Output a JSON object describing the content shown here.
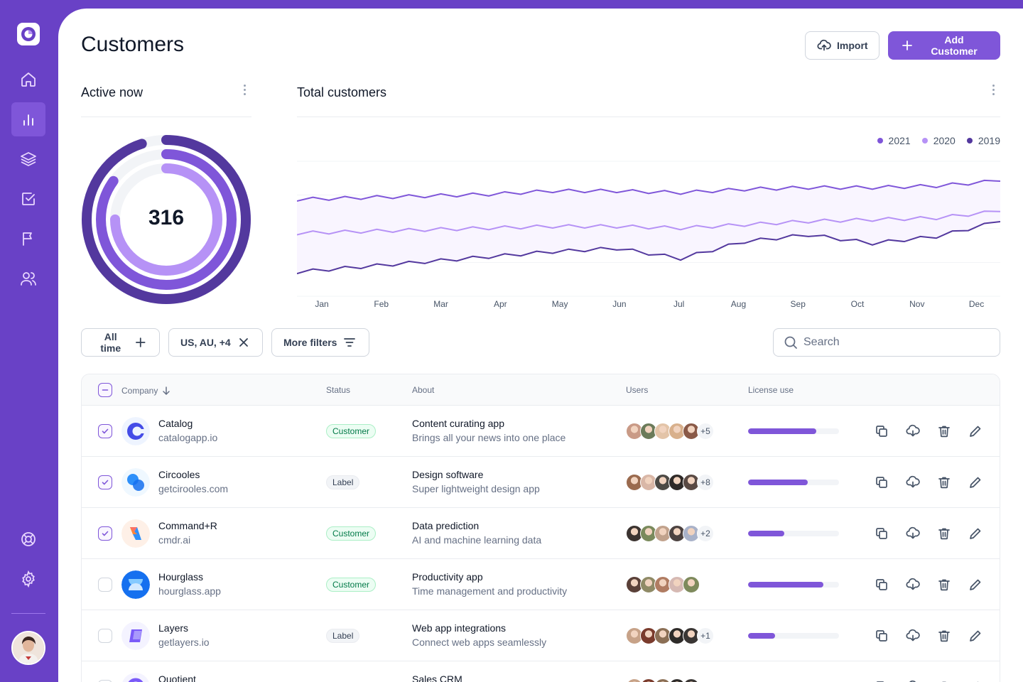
{
  "sidebar": {
    "items": [
      {
        "name": "home-icon"
      },
      {
        "name": "bar-chart-icon",
        "active": true
      },
      {
        "name": "layers-icon"
      },
      {
        "name": "check-square-icon"
      },
      {
        "name": "flag-icon"
      },
      {
        "name": "users-icon"
      }
    ],
    "bottom_items": [
      {
        "name": "life-buoy-icon"
      },
      {
        "name": "settings-icon"
      }
    ]
  },
  "header": {
    "title": "Customers",
    "import_label": "Import",
    "add_label": "Add Customer"
  },
  "active_now": {
    "title": "Active now",
    "value": "316",
    "rings": [
      0.95,
      0.85,
      0.75
    ]
  },
  "total_customers": {
    "title": "Total customers",
    "legend": [
      {
        "label": "2021",
        "color": "#7F56D9"
      },
      {
        "label": "2020",
        "color": "#B692F6"
      },
      {
        "label": "2019",
        "color": "#53389E"
      }
    ]
  },
  "chart_data": {
    "type": "line",
    "title": "Total customers",
    "categories": [
      "Jan",
      "Feb",
      "Mar",
      "Apr",
      "May",
      "Jun",
      "Jul",
      "Aug",
      "Sep",
      "Oct",
      "Nov",
      "Dec"
    ],
    "series": [
      {
        "name": "2021",
        "values": [
          73,
          74,
          75,
          76,
          78,
          78,
          77,
          79,
          80,
          80,
          81,
          84
        ]
      },
      {
        "name": "2020",
        "values": [
          53,
          54,
          55,
          56,
          57,
          57,
          56,
          58,
          60,
          61,
          62,
          66
        ]
      },
      {
        "name": "2019",
        "values": [
          30,
          33,
          36,
          39,
          42,
          44,
          38,
          48,
          52,
          47,
          51,
          60
        ]
      }
    ],
    "ylim": [
      20,
      100
    ],
    "grid": true,
    "legend_position": "top-right"
  },
  "filters": {
    "all_time": "All time",
    "region": "US, AU, +4",
    "more": "More filters",
    "search_placeholder": "Search"
  },
  "table": {
    "headers": {
      "company": "Company",
      "status": "Status",
      "about": "About",
      "users": "Users",
      "license": "License use"
    },
    "rows": [
      {
        "name": "Catalog",
        "domain": "catalogapp.io",
        "status": "Customer",
        "about_title": "Content curating app",
        "about_sub": "Brings all your news into one place",
        "users_more": "+5",
        "license": 0.75,
        "checked": true,
        "logo": "catalog",
        "avatars": [
          "#c99a86",
          "#6b7b5a",
          "#e3c4a8",
          "#d8b08c",
          "#8a5a48"
        ]
      },
      {
        "name": "Circooles",
        "domain": "getcirooles.com",
        "status": "Label",
        "about_title": "Design software",
        "about_sub": "Super lightweight design app",
        "users_more": "+8",
        "license": 0.66,
        "checked": true,
        "logo": "circooles",
        "avatars": [
          "#9a6a4e",
          "#d9b7a7",
          "#4d4a45",
          "#2f2a28",
          "#5a4a44"
        ]
      },
      {
        "name": "Command+R",
        "domain": "cmdr.ai",
        "status": "Customer",
        "about_title": "Data prediction",
        "about_sub": "AI and machine learning data",
        "users_more": "+2",
        "license": 0.4,
        "checked": true,
        "logo": "commandr",
        "avatars": [
          "#3b3330",
          "#7a8a5c",
          "#c1a28c",
          "#4c4240",
          "#a9b2c9"
        ]
      },
      {
        "name": "Hourglass",
        "domain": "hourglass.app",
        "status": "Customer",
        "about_title": "Productivity app",
        "about_sub": "Time management and productivity",
        "users_more": "",
        "license": 0.83,
        "checked": false,
        "logo": "hourglass",
        "avatars": [
          "#5a4038",
          "#8f8a66",
          "#b07c62",
          "#d6b9b3",
          "#7e8a5c"
        ]
      },
      {
        "name": "Layers",
        "domain": "getlayers.io",
        "status": "Label",
        "about_title": "Web app integrations",
        "about_sub": "Connect web apps seamlessly",
        "users_more": "+1",
        "license": 0.3,
        "checked": false,
        "logo": "layers",
        "avatars": [
          "#c7a288",
          "#7a3b2c",
          "#8b6f55",
          "#2e2b29",
          "#3a3634"
        ]
      },
      {
        "name": "Quotient",
        "domain": "",
        "status": "",
        "about_title": "Sales CRM",
        "about_sub": "",
        "users_more": "",
        "license": 0,
        "checked": false,
        "logo": "quotient",
        "avatars": [
          "#c7a288",
          "#7a3b2c",
          "#8b6f55",
          "#2e2b29",
          "#3a3634"
        ]
      }
    ]
  }
}
